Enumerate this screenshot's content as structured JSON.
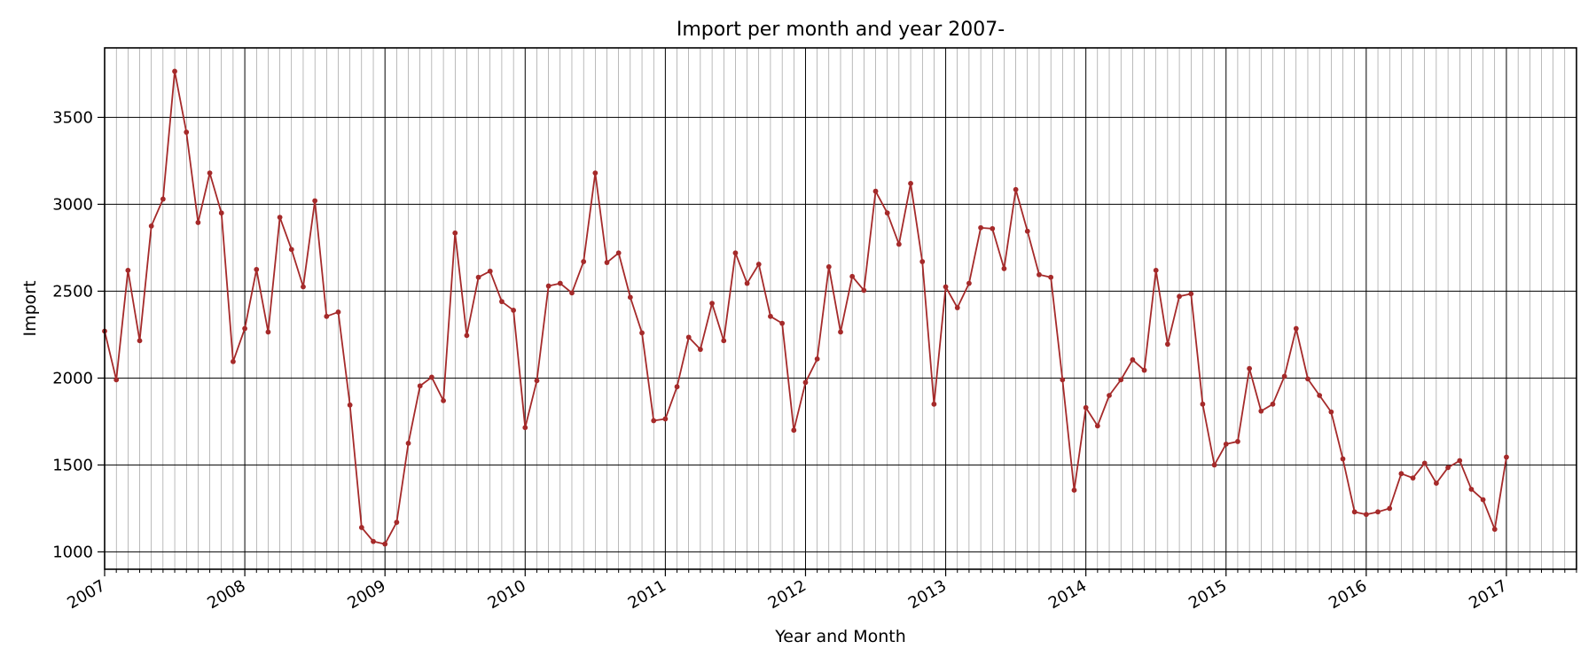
{
  "chart_data": {
    "type": "line",
    "title": "Import per month and year 2007-",
    "xlabel": "Year and Month",
    "ylabel": "Import",
    "x_start": "2007-01",
    "xlim": [
      "2007-01",
      "2017-07"
    ],
    "ylim": [
      900,
      3900
    ],
    "yticks": [
      1000,
      1500,
      2000,
      2500,
      3000,
      3500
    ],
    "xticks": [
      "2007",
      "2008",
      "2009",
      "2010",
      "2011",
      "2012",
      "2013",
      "2014",
      "2015",
      "2016",
      "2017"
    ],
    "grid": true,
    "minor_grid": "monthly",
    "series": [
      {
        "color": "#a52a2a",
        "values": [
          2270,
          1990,
          2620,
          2215,
          2875,
          3030,
          3765,
          3415,
          2895,
          3180,
          2950,
          2095,
          2285,
          2625,
          2265,
          2925,
          2740,
          2525,
          3020,
          2355,
          2380,
          1845,
          1140,
          1060,
          1045,
          1170,
          1625,
          1955,
          2005,
          1870,
          2835,
          2245,
          2580,
          2615,
          2440,
          2390,
          1715,
          1985,
          2530,
          2545,
          2490,
          2670,
          3180,
          2665,
          2720,
          2465,
          2260,
          1755,
          1765,
          1950,
          2235,
          2165,
          2430,
          2215,
          2720,
          2545,
          2655,
          2355,
          2315,
          1700,
          1975,
          2110,
          2640,
          2265,
          2585,
          2505,
          3075,
          2950,
          2770,
          3120,
          2670,
          1850,
          2525,
          2405,
          2545,
          2865,
          2860,
          2630,
          3085,
          2845,
          2595,
          2580,
          1990,
          1355,
          1830,
          1725,
          1900,
          1990,
          2105,
          2045,
          2620,
          2195,
          2470,
          2485,
          1850,
          1500,
          1620,
          1635,
          2055,
          1810,
          1850,
          2010,
          2285,
          1995,
          1900,
          1805,
          1535,
          1230,
          1215,
          1230,
          1250,
          1450,
          1425,
          1510,
          1395,
          1485,
          1525,
          1360,
          1300,
          1130,
          1545
        ]
      }
    ]
  }
}
